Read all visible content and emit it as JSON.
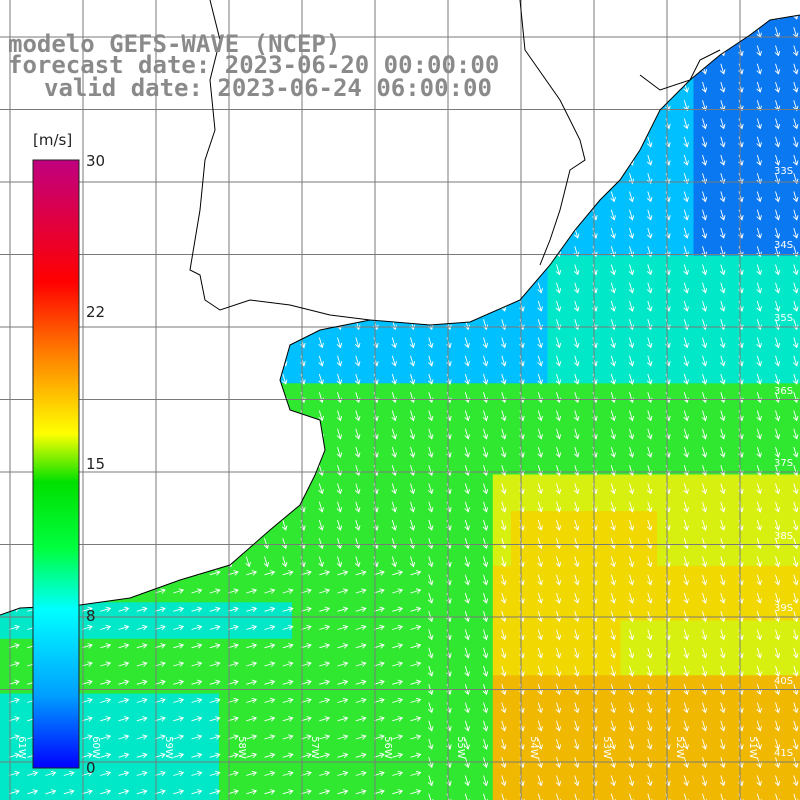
{
  "header": {
    "model_line": "modelo GEFS-WAVE (NCEP)",
    "forecast_line": "forecast date: 2023-06-20 00:00:00",
    "valid_line": "valid date: 2023-06-24 06:00:00"
  },
  "colorbar": {
    "unit": "[m/s]",
    "ticks": [
      "30",
      "22",
      "15",
      "8",
      "0"
    ],
    "stops": [
      "#0000ff",
      "#00a0ff",
      "#00ffff",
      "#00ff40",
      "#00e000",
      "#ffff00",
      "#ff8000",
      "#ff0000",
      "#c00080"
    ]
  },
  "axes": {
    "lat_labels": [
      "33S",
      "34S",
      "35S",
      "36S",
      "37S",
      "38S",
      "39S",
      "40S",
      "41S"
    ],
    "lon_labels": [
      "61W",
      "60W",
      "59W",
      "58W",
      "57W",
      "56W",
      "55W",
      "54W",
      "53W",
      "52W",
      "51W"
    ]
  },
  "map": {
    "variable": "wind speed",
    "field_colors": [
      "#0a78f0",
      "#00c0ff",
      "#00e8c8",
      "#30e830",
      "#80f020",
      "#d8f010",
      "#f0d800",
      "#f0b800"
    ],
    "land_color": "#ffffff",
    "grid_color": "#7a7a7a",
    "coast_color": "#000000",
    "arrow_color": "#ffffff"
  }
}
